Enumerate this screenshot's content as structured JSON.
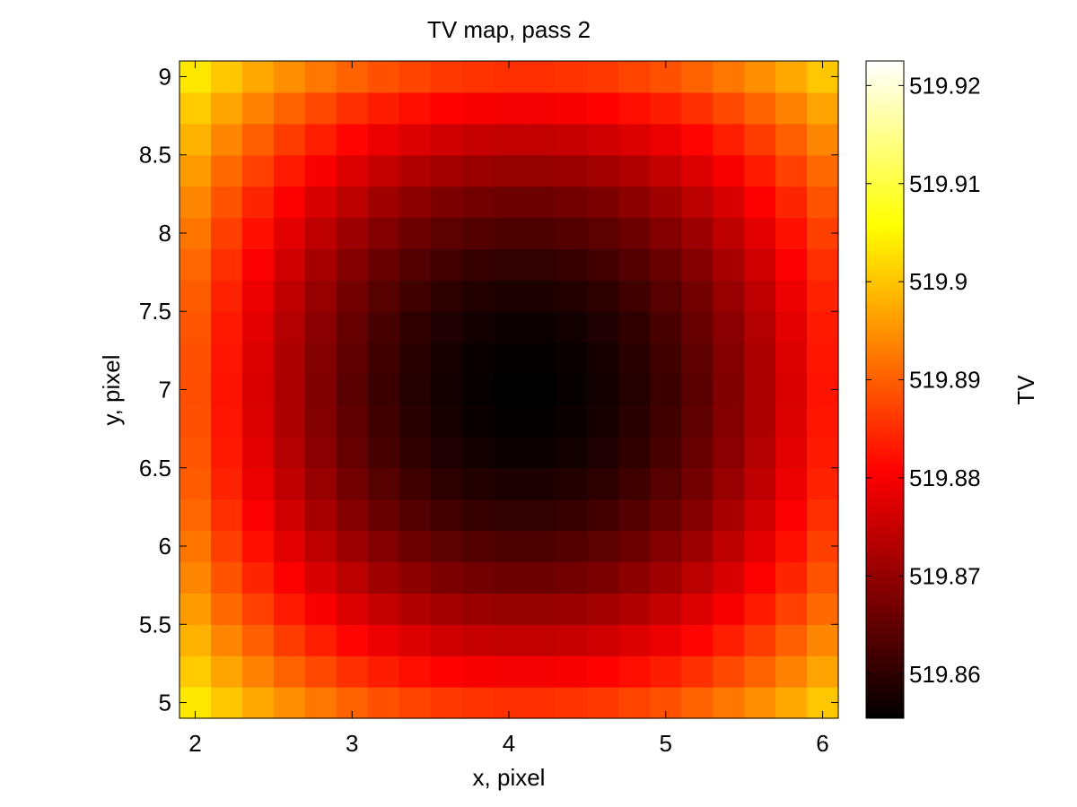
{
  "chart_data": {
    "type": "heatmap",
    "title": "TV map, pass 2",
    "xlabel": "x, pixel",
    "ylabel": "y, pixel",
    "colorbar_label": "TV",
    "colormap": "hot",
    "xlim": [
      1.9,
      6.1
    ],
    "ylim": [
      4.9,
      9.1
    ],
    "x_ticks": [
      2,
      3,
      4,
      5,
      6
    ],
    "x_tick_labels": [
      "2",
      "3",
      "4",
      "5",
      "6"
    ],
    "y_ticks": [
      5,
      5.5,
      6,
      6.5,
      7,
      7.5,
      8,
      8.5,
      9
    ],
    "y_tick_labels": [
      "5",
      "5.5",
      "6",
      "6.5",
      "7",
      "7.5",
      "8",
      "8.5",
      "9"
    ],
    "x": [
      2.0,
      2.2,
      2.4,
      2.6,
      2.8,
      3.0,
      3.2,
      3.4,
      3.6,
      3.8,
      4.0,
      4.2,
      4.4,
      4.6,
      4.8,
      5.0,
      5.2,
      5.4,
      5.6,
      5.8,
      6.0
    ],
    "y": [
      5.0,
      5.2,
      5.4,
      5.6,
      5.8,
      6.0,
      6.2,
      6.4,
      6.6,
      6.8,
      7.0,
      7.2,
      7.4,
      7.6,
      7.8,
      8.0,
      8.2,
      8.4,
      8.6,
      8.8,
      9.0
    ],
    "value_model": {
      "description": "TV(x,y) = max - (max-min)*(1 - (dx/3)^2)*(1 - (dy/3)^2)",
      "center_x": 4.1,
      "center_y": 7.0,
      "min": 519.8555,
      "max": 519.9225
    },
    "clim": [
      519.8555,
      519.9225
    ],
    "colorbar_ticks": [
      519.86,
      519.87,
      519.88,
      519.89,
      519.9,
      519.91,
      519.92
    ],
    "colorbar_tick_labels": [
      "519.86",
      "519.87",
      "519.88",
      "519.89",
      "519.9",
      "519.91",
      "519.92"
    ],
    "grid": false
  }
}
